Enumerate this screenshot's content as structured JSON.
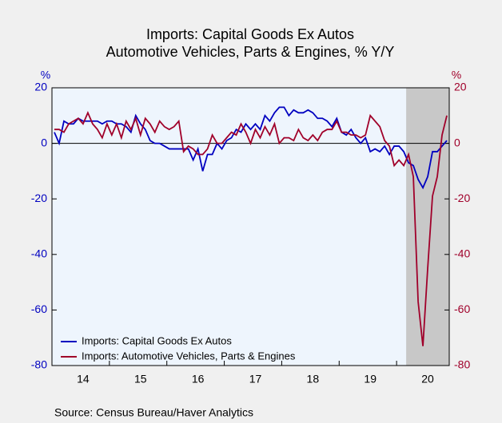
{
  "chart_data": {
    "type": "line",
    "title": "Imports: Capital Goods Ex Autos",
    "subtitle": "Automotive Vehicles, Parts & Engines, % Y/Y",
    "y_axis_label": "%",
    "y2_axis_label": "%",
    "source": "Source:  Census Bureau/Haver Analytics",
    "categories": [
      null,
      null,
      null,
      null,
      null,
      null,
      "14",
      null,
      null,
      null,
      null,
      null,
      null,
      null,
      null,
      null,
      null,
      null,
      "15",
      null,
      null,
      null,
      null,
      null,
      null,
      null,
      null,
      null,
      null,
      null,
      "16",
      null,
      null,
      null,
      null,
      null,
      null,
      null,
      null,
      null,
      null,
      null,
      "17",
      null,
      null,
      null,
      null,
      null,
      null,
      null,
      null,
      null,
      null,
      null,
      "18",
      null,
      null,
      null,
      null,
      null,
      null,
      null,
      null,
      null,
      null,
      null,
      "19",
      null,
      null,
      null,
      null,
      null,
      null,
      null,
      null,
      null,
      null,
      null,
      "20",
      null,
      null,
      null,
      null
    ],
    "series": [
      {
        "name": "Imports: Capital Goods Ex Autos",
        "color": "#0000c0",
        "values": [
          4,
          0,
          8,
          7,
          7,
          9,
          8,
          8,
          8,
          8,
          7,
          8,
          8,
          7,
          7,
          6,
          4,
          10,
          7,
          5,
          1,
          0,
          0,
          -1,
          -2,
          -2,
          -2,
          -2,
          -2,
          -6,
          -2,
          -10,
          -4,
          -4,
          0,
          -2,
          1,
          2,
          5,
          4,
          7,
          5,
          7,
          5,
          10,
          8,
          11,
          13,
          13,
          10,
          12,
          11,
          11,
          12,
          11,
          9,
          9,
          8,
          6,
          9,
          4,
          3,
          5,
          2,
          0,
          2,
          -3,
          -2,
          -3,
          -1,
          -4,
          -1,
          -1,
          -3,
          -7,
          -8,
          -13,
          -16,
          -12,
          -3,
          -3,
          -1,
          1
        ]
      },
      {
        "name": "Imports: Automotive Vehicles, Parts & Engines",
        "color": "#a0002a",
        "axis": "y2",
        "values": [
          5,
          5,
          4,
          7,
          8,
          9,
          7,
          11,
          7,
          5,
          2,
          7,
          3,
          7,
          2,
          8,
          5,
          9,
          3,
          9,
          7,
          4,
          8,
          6,
          5,
          6,
          8,
          -3,
          -1,
          -2,
          -4,
          -4,
          -2,
          3,
          0,
          0,
          2,
          4,
          3,
          7,
          4,
          0,
          5,
          2,
          6,
          3,
          7,
          0,
          2,
          2,
          1,
          5,
          2,
          1,
          3,
          1,
          4,
          5,
          5,
          8,
          4,
          4,
          3,
          3,
          2,
          3,
          10,
          8,
          6,
          1,
          -1,
          -8,
          -6,
          -8,
          -4,
          -12,
          -57,
          -73,
          -45,
          -19,
          -12,
          3,
          10
        ]
      }
    ],
    "ylim": [
      -80,
      20
    ],
    "yticks": [
      -80,
      -60,
      -40,
      -20,
      0,
      20
    ],
    "y2lim": [
      -80,
      20
    ],
    "y2ticks": [
      -80,
      -60,
      -40,
      -20,
      0,
      20
    ],
    "zero_line": true,
    "shaded_range": [
      74,
      82
    ],
    "legend": "lower left"
  }
}
